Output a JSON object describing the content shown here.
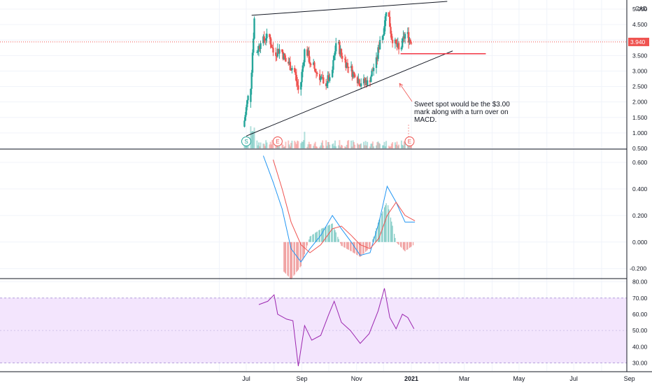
{
  "chart_data": {
    "currency": "CAD",
    "current_price": "3.940",
    "colors": {
      "up": "#26a69a",
      "down": "#ef5350",
      "trendline": "#131722",
      "support": "#f23645",
      "macd": "#2196f3",
      "signal": "#ef5350",
      "rsi": "#9c27b0",
      "rsi_band": "#f3e5fd",
      "grid": "#f0f3fa"
    },
    "x_labels": [
      "Jul",
      "Sep",
      "Nov",
      "2021",
      "Mar",
      "May",
      "Jul",
      "Sep"
    ],
    "annotation": [
      "Sweet spot would be the $3.00",
      "mark along with a turn over on",
      "MACD."
    ],
    "events": [
      {
        "label": "S",
        "date": "2020-07-01"
      },
      {
        "label": "E",
        "date": "2020-08-05"
      },
      {
        "label": "E",
        "date": "2020-12-30"
      }
    ],
    "panels": [
      {
        "name": "price",
        "type": "candlestick",
        "ylim": [
          0.5,
          5.25
        ],
        "yticks": [
          "5.000",
          "4.500",
          "4.000",
          "3.500",
          "3.000",
          "2.500",
          "2.000",
          "1.500",
          "1.000",
          "0.500"
        ],
        "candles_weekly_close": [
          [
            "2020-06-29",
            1.2,
            2.2
          ],
          [
            "2020-07-06",
            2.0,
            4.7
          ],
          [
            "2020-07-13",
            3.6,
            3.9
          ],
          [
            "2020-07-20",
            3.9,
            4.2
          ],
          [
            "2020-07-27",
            4.2,
            3.6
          ],
          [
            "2020-08-03",
            3.6,
            3.7
          ],
          [
            "2020-08-10",
            3.7,
            3.3
          ],
          [
            "2020-08-17",
            3.3,
            3.1
          ],
          [
            "2020-08-24",
            3.1,
            2.4
          ],
          [
            "2020-08-31",
            2.4,
            3.7
          ],
          [
            "2020-09-07",
            3.7,
            3.2
          ],
          [
            "2020-09-14",
            3.2,
            2.9
          ],
          [
            "2020-09-21",
            2.9,
            2.6
          ],
          [
            "2020-09-28",
            2.6,
            2.8
          ],
          [
            "2020-10-05",
            2.8,
            3.9
          ],
          [
            "2020-10-12",
            3.9,
            3.4
          ],
          [
            "2020-10-19",
            3.4,
            3.1
          ],
          [
            "2020-10-26",
            3.1,
            2.8
          ],
          [
            "2020-11-02",
            2.8,
            2.6
          ],
          [
            "2020-11-09",
            2.6,
            2.7
          ],
          [
            "2020-11-16",
            2.7,
            3.1
          ],
          [
            "2020-11-23",
            3.1,
            4.0
          ],
          [
            "2020-11-30",
            4.0,
            4.9
          ],
          [
            "2020-12-07",
            4.9,
            3.9
          ],
          [
            "2020-12-14",
            3.9,
            3.7
          ],
          [
            "2020-12-21",
            3.7,
            4.2
          ],
          [
            "2020-12-28",
            4.2,
            3.9
          ]
        ],
        "volume_max_relative": 1.0,
        "trendlines": [
          {
            "name": "upper resistance",
            "points": [
              [
                "2020-07-07",
                4.8
              ],
              [
                "2021-02-10",
                5.25
              ]
            ]
          },
          {
            "name": "lower support",
            "points": [
              [
                "2020-07-01",
                0.9
              ],
              [
                "2021-02-16",
                3.65
              ]
            ]
          },
          {
            "name": "horizontal support",
            "points": [
              [
                "2020-12-20",
                3.56
              ],
              [
                "2021-03-25",
                3.56
              ]
            ]
          }
        ]
      },
      {
        "name": "MACD",
        "type": "line+histogram",
        "ylim": [
          -0.27,
          0.7
        ],
        "yticks": [
          "0.600",
          "0.400",
          "0.200",
          "0.000",
          "-0.200"
        ],
        "macd": [
          [
            "2020-07-20",
            0.65
          ],
          [
            "2020-07-31",
            0.45
          ],
          [
            "2020-08-10",
            0.25
          ],
          [
            "2020-08-20",
            -0.05
          ],
          [
            "2020-08-31",
            -0.15
          ],
          [
            "2020-09-10",
            -0.05
          ],
          [
            "2020-09-22",
            0.05
          ],
          [
            "2020-10-05",
            0.2
          ],
          [
            "2020-10-15",
            0.1
          ],
          [
            "2020-10-26",
            0.0
          ],
          [
            "2020-11-05",
            -0.1
          ],
          [
            "2020-11-16",
            -0.08
          ],
          [
            "2020-11-26",
            0.15
          ],
          [
            "2020-12-05",
            0.42
          ],
          [
            "2020-12-15",
            0.3
          ],
          [
            "2020-12-25",
            0.15
          ],
          [
            "2021-01-05",
            0.15
          ]
        ],
        "signal": [
          [
            "2020-07-31",
            0.62
          ],
          [
            "2020-08-10",
            0.4
          ],
          [
            "2020-08-20",
            0.15
          ],
          [
            "2020-08-31",
            -0.02
          ],
          [
            "2020-09-10",
            -0.08
          ],
          [
            "2020-09-22",
            -0.02
          ],
          [
            "2020-10-05",
            0.1
          ],
          [
            "2020-10-15",
            0.12
          ],
          [
            "2020-10-26",
            0.05
          ],
          [
            "2020-11-05",
            -0.02
          ],
          [
            "2020-11-16",
            -0.05
          ],
          [
            "2020-11-26",
            0.03
          ],
          [
            "2020-12-05",
            0.2
          ],
          [
            "2020-12-15",
            0.3
          ],
          [
            "2020-12-25",
            0.2
          ],
          [
            "2021-01-05",
            0.16
          ]
        ]
      },
      {
        "name": "RSI",
        "type": "line",
        "ylim": [
          25,
          82
        ],
        "band": [
          30,
          70
        ],
        "yticks": [
          "80.00",
          "70.00",
          "60.00",
          "50.00",
          "40.00",
          "30.00"
        ],
        "rsi": [
          [
            "2020-07-15",
            66
          ],
          [
            "2020-07-25",
            68
          ],
          [
            "2020-08-01",
            72
          ],
          [
            "2020-08-05",
            60
          ],
          [
            "2020-08-15",
            57
          ],
          [
            "2020-08-22",
            56
          ],
          [
            "2020-08-28",
            28
          ],
          [
            "2020-09-04",
            53
          ],
          [
            "2020-09-12",
            44
          ],
          [
            "2020-09-22",
            47
          ],
          [
            "2020-10-01",
            60
          ],
          [
            "2020-10-07",
            68
          ],
          [
            "2020-10-15",
            55
          ],
          [
            "2020-10-25",
            50
          ],
          [
            "2020-11-05",
            42
          ],
          [
            "2020-11-15",
            48
          ],
          [
            "2020-11-25",
            62
          ],
          [
            "2020-12-02",
            76
          ],
          [
            "2020-12-08",
            58
          ],
          [
            "2020-12-15",
            51
          ],
          [
            "2020-12-22",
            60
          ],
          [
            "2020-12-28",
            58
          ],
          [
            "2021-01-04",
            51
          ]
        ]
      }
    ]
  }
}
